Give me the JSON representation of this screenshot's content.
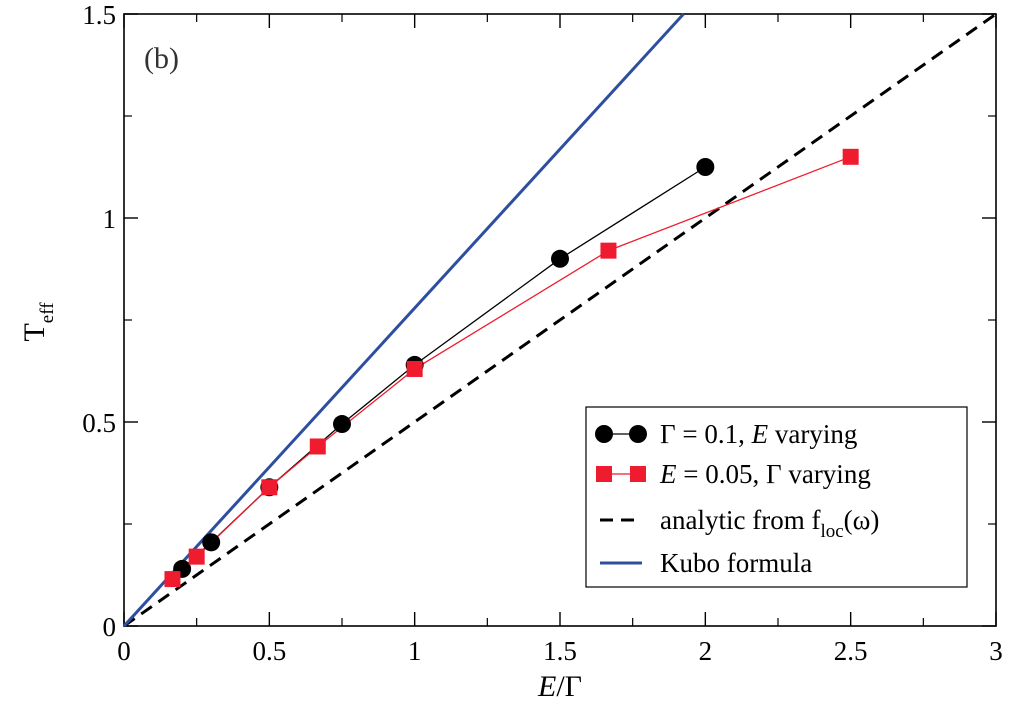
{
  "chart_data": {
    "type": "line",
    "panel_label": "(b)",
    "xlabel": {
      "var": "E",
      "sep": "/",
      "denom": "Γ"
    },
    "ylabel": {
      "base": "T",
      "sub": "eff"
    },
    "xlim": [
      0,
      3
    ],
    "ylim": [
      0,
      1.5
    ],
    "xticks": [
      0,
      0.5,
      1,
      1.5,
      2,
      2.5,
      3
    ],
    "xtick_labels": [
      "0",
      "0.5",
      "1",
      "1.5",
      "2",
      "2.5",
      "3"
    ],
    "yticks": [
      0,
      0.5,
      1,
      1.5
    ],
    "ytick_labels": [
      "0",
      "0.5",
      "1",
      "1.5"
    ],
    "legend_position": "bottom-right",
    "series": [
      {
        "name": "Γ = 0.1, E varying",
        "marker": "circle",
        "color": "#000000",
        "line_color": "#000000",
        "x": [
          0.2,
          0.3,
          0.5,
          0.75,
          1.0,
          1.5,
          2.0
        ],
        "y": [
          0.14,
          0.205,
          0.34,
          0.495,
          0.64,
          0.9,
          1.125
        ]
      },
      {
        "name": "E = 0.05, Γ varying",
        "marker": "square",
        "color": "#ee1c2e",
        "line_color": "#ee1c2e",
        "x": [
          0.1667,
          0.25,
          0.5,
          0.6667,
          1.0,
          1.6667,
          2.5
        ],
        "y": [
          0.115,
          0.17,
          0.34,
          0.44,
          0.63,
          0.92,
          1.15
        ]
      },
      {
        "name": "analytic from f_loc(ω)",
        "style": "dashed",
        "color": "#000000",
        "x": [
          0,
          3
        ],
        "y": [
          0,
          1.5
        ]
      },
      {
        "name": "Kubo formula",
        "style": "solid",
        "color": "#2e4fa0",
        "x": [
          0,
          1.925
        ],
        "y": [
          0,
          1.5
        ]
      }
    ],
    "legend": [
      {
        "parts": [
          {
            "t": "Γ = 0.1, "
          },
          {
            "t": "E",
            "i": true
          },
          {
            "t": " varying"
          }
        ]
      },
      {
        "parts": [
          {
            "t": "E",
            "i": true
          },
          {
            "t": " = 0.05, Γ varying"
          }
        ]
      },
      {
        "parts": [
          {
            "t": "analytic from f"
          },
          {
            "t": "loc",
            "sub": true
          },
          {
            "t": "(ω)"
          }
        ]
      },
      {
        "parts": [
          {
            "t": "Kubo formula"
          }
        ]
      }
    ]
  }
}
